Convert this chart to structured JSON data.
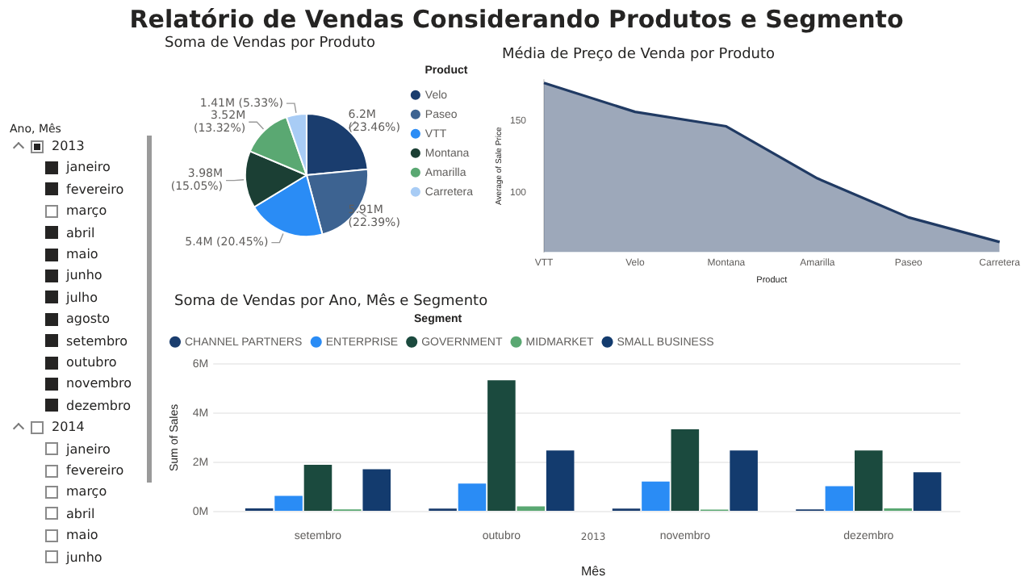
{
  "chart_data": [
    {
      "type": "other",
      "title": "Relatório de Vendas Considerando Produtos e Segmento"
    },
    {
      "type": "other",
      "title": "Ano, Mês",
      "annotations": [
        "2013",
        "janeiro",
        "fevereiro",
        "março",
        "abril",
        "maio",
        "junho",
        "julho",
        "agosto",
        "setembro",
        "outubro",
        "novembro",
        "dezembro",
        "2014",
        "janeiro",
        "fevereiro",
        "março",
        "abril",
        "maio",
        "junho"
      ]
    },
    {
      "type": "pie",
      "title": "Soma de Vendas por Produto",
      "legend_title": "Product",
      "legend": "right",
      "categories": [
        "Velo",
        "Paseo",
        "VTT",
        "Montana",
        "Amarilla",
        "Carretera"
      ],
      "values": [
        23.46,
        22.39,
        20.45,
        15.05,
        13.32,
        5.33
      ],
      "colors": [
        "#1a3d6e",
        "#3d6391",
        "#2a8cf5",
        "#1b3f34",
        "#5aa872",
        "#a8ccf5"
      ],
      "value_labels": [
        "6.2M (23.46%)",
        "5.91M (22.39%)",
        "5.4M (20.45%)",
        "3.98M (15.05%)",
        "3.52M (13.32%)",
        "1.41M (5.33%)"
      ]
    },
    {
      "type": "area",
      "title": "Média de Preço de Venda por Produto",
      "xlabel": "Product",
      "ylabel": "Average of Sale Price",
      "categories": [
        "VTT",
        "Velo",
        "Montana",
        "Amarilla",
        "Paseo",
        "Carretera"
      ],
      "series": [
        {
          "color": "#203a63",
          "values": [
            176,
            156,
            146,
            110,
            83,
            66
          ]
        }
      ],
      "ylim": [
        59,
        178
      ],
      "yticks": [
        100,
        150
      ],
      "grid": false,
      "legend": false
    },
    {
      "type": "bar",
      "title": "Soma de Vendas por Ano, Mês e Segmento",
      "xlabel": "Mês",
      "ylabel": "Sum of Sales",
      "legend_title": "Segment",
      "legend": "top left",
      "grid": "y",
      "annotations": [
        "2013"
      ],
      "categories": [
        "setembro",
        "outubro",
        "novembro",
        "dezembro"
      ],
      "ylim": [
        0,
        6
      ],
      "yticks": [
        {
          "value": 0,
          "label": "0M"
        },
        {
          "value": 2,
          "label": "2M"
        },
        {
          "value": 4,
          "label": "4M"
        },
        {
          "value": 6,
          "label": "6M"
        }
      ],
      "series": [
        {
          "name": "CHANNEL PARTNERS",
          "color": "#1a3d6e",
          "values": [
            0.13,
            0.12,
            0.12,
            0.09
          ]
        },
        {
          "name": "ENTERPRISE",
          "color": "#2a8cf5",
          "values": [
            0.64,
            1.14,
            1.22,
            1.03
          ]
        },
        {
          "name": "GOVERNMENT",
          "color": "#1b4a3e",
          "values": [
            1.9,
            5.33,
            3.34,
            2.48
          ]
        },
        {
          "name": "MIDMARKET",
          "color": "#5aa872",
          "values": [
            0.09,
            0.21,
            0.08,
            0.13
          ]
        },
        {
          "name": "SMALL BUSINESS",
          "color": "#133b6e",
          "values": [
            1.72,
            2.48,
            2.48,
            1.6
          ]
        }
      ]
    }
  ]
}
